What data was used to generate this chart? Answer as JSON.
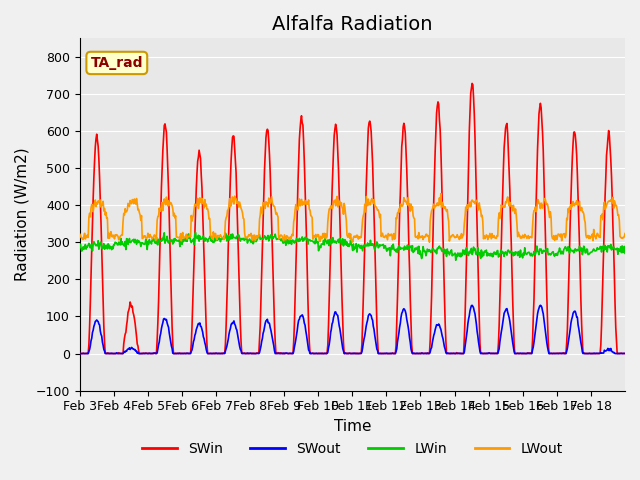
{
  "title": "Alfalfa Radiation",
  "xlabel": "Time",
  "ylabel": "Radiation (W/m2)",
  "ylim": [
    -100,
    850
  ],
  "yticks": [
    -100,
    0,
    100,
    200,
    300,
    400,
    500,
    600,
    700,
    800
  ],
  "xtick_labels": [
    "Feb 3",
    "Feb 4",
    "Feb 5",
    "Feb 6",
    "Feb 7",
    "Feb 8",
    "Feb 9",
    "Feb 10",
    "Feb 11",
    "Feb 12",
    "Feb 13",
    "Feb 14",
    "Feb 15",
    "Feb 16",
    "Feb 17",
    "Feb 18"
  ],
  "colors": {
    "SWin": "#ff0000",
    "SWout": "#0000ff",
    "LWin": "#00cc00",
    "LWout": "#ff9900"
  },
  "legend_box_text": "TA_rad",
  "legend_box_bg": "#ffffcc",
  "legend_box_edge": "#cc9900",
  "plot_bg": "#e8e8e8",
  "grid_color": "#ffffff",
  "n_days": 16,
  "dt_hours": 0.5,
  "SWin_peaks": [
    590,
    130,
    620,
    550,
    590,
    605,
    640,
    615,
    630,
    620,
    680,
    730,
    620,
    675,
    600,
    595
  ],
  "SWout_peaks": [
    90,
    15,
    95,
    80,
    85,
    90,
    105,
    110,
    105,
    120,
    80,
    130,
    120,
    130,
    115,
    10
  ],
  "LWin_base": 285,
  "LWout_base": 335,
  "title_fontsize": 14,
  "axis_fontsize": 11,
  "tick_fontsize": 9,
  "legend_fontsize": 10,
  "linewidth": 1.2,
  "figsize": [
    6.4,
    4.8
  ],
  "dpi": 100
}
